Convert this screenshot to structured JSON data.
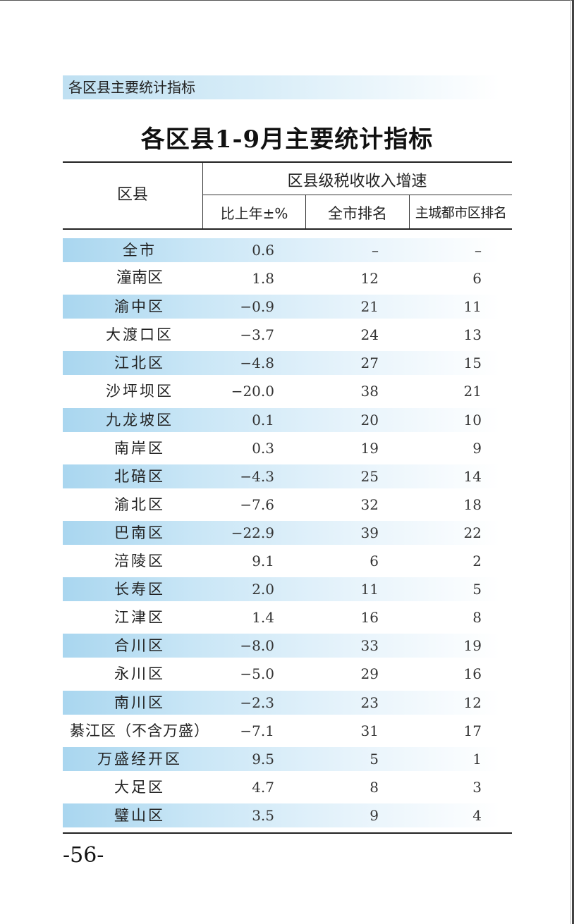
{
  "header": {
    "section_label": "各区县主要统计指标"
  },
  "table": {
    "title": "各区县1-9月主要统计指标",
    "col_district": "区县",
    "group_header": "区县级税收收入增速",
    "col_yoy": "比上年±%",
    "col_city_rank": "全市排名",
    "col_core_rank": "主城都市区排名",
    "rows": [
      {
        "name": "全市",
        "yoy": "0.6",
        "city_rank": "–",
        "core_rank": "–"
      },
      {
        "name": "潼南区",
        "yoy": "1.8",
        "city_rank": "12",
        "core_rank": "6"
      },
      {
        "name": "渝中区",
        "yoy": "−0.9",
        "city_rank": "21",
        "core_rank": "11"
      },
      {
        "name": "大渡口区",
        "yoy": "−3.7",
        "city_rank": "24",
        "core_rank": "13"
      },
      {
        "name": "江北区",
        "yoy": "−4.8",
        "city_rank": "27",
        "core_rank": "15"
      },
      {
        "name": "沙坪坝区",
        "yoy": "−20.0",
        "city_rank": "38",
        "core_rank": "21"
      },
      {
        "name": "九龙坡区",
        "yoy": "0.1",
        "city_rank": "20",
        "core_rank": "10"
      },
      {
        "name": "南岸区",
        "yoy": "0.3",
        "city_rank": "19",
        "core_rank": "9"
      },
      {
        "name": "北碚区",
        "yoy": "−4.3",
        "city_rank": "25",
        "core_rank": "14"
      },
      {
        "name": "渝北区",
        "yoy": "−7.6",
        "city_rank": "32",
        "core_rank": "18"
      },
      {
        "name": "巴南区",
        "yoy": "−22.9",
        "city_rank": "39",
        "core_rank": "22"
      },
      {
        "name": "涪陵区",
        "yoy": "9.1",
        "city_rank": "6",
        "core_rank": "2"
      },
      {
        "name": "长寿区",
        "yoy": "2.0",
        "city_rank": "11",
        "core_rank": "5"
      },
      {
        "name": "江津区",
        "yoy": "1.4",
        "city_rank": "16",
        "core_rank": "8"
      },
      {
        "name": "合川区",
        "yoy": "−8.0",
        "city_rank": "33",
        "core_rank": "19"
      },
      {
        "name": "永川区",
        "yoy": "−5.0",
        "city_rank": "29",
        "core_rank": "16"
      },
      {
        "name": "南川区",
        "yoy": "−2.3",
        "city_rank": "23",
        "core_rank": "12"
      },
      {
        "name": "綦江区（不含万盛）",
        "yoy": "−7.1",
        "city_rank": "31",
        "core_rank": "17"
      },
      {
        "name": "万盛经开区",
        "yoy": "9.5",
        "city_rank": "5",
        "core_rank": "1"
      },
      {
        "name": "大足区",
        "yoy": "4.7",
        "city_rank": "8",
        "core_rank": "3"
      },
      {
        "name": "璧山区",
        "yoy": "3.5",
        "city_rank": "9",
        "core_rank": "4"
      }
    ]
  },
  "footer": {
    "page_number": "-56-"
  }
}
